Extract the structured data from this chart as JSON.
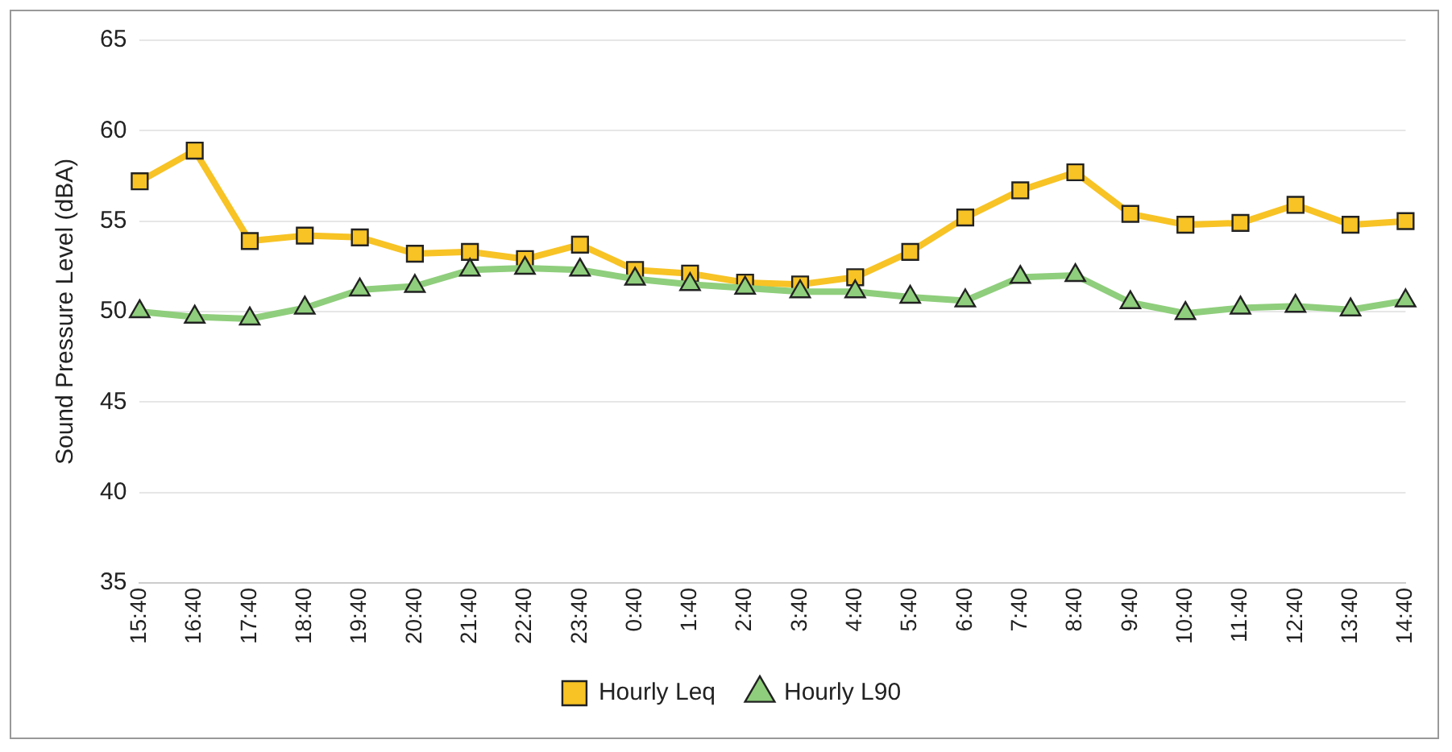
{
  "chart_data": {
    "type": "line",
    "ylabel": "Sound Pressure Level (dBA)",
    "categories": [
      "15:40",
      "16:40",
      "17:40",
      "18:40",
      "19:40",
      "20:40",
      "21:40",
      "22:40",
      "23:40",
      "0:40",
      "1:40",
      "2:40",
      "3:40",
      "4:40",
      "5:40",
      "6:40",
      "7:40",
      "8:40",
      "9:40",
      "10:40",
      "11:40",
      "12:40",
      "13:40",
      "14:40"
    ],
    "series": [
      {
        "name": "Hourly Leq",
        "color": "#f7c325",
        "marker": "square",
        "values": [
          57.2,
          58.9,
          53.9,
          54.2,
          54.1,
          53.2,
          53.3,
          52.9,
          53.7,
          52.3,
          52.1,
          51.6,
          51.5,
          51.9,
          53.3,
          55.2,
          56.7,
          57.7,
          55.4,
          54.8,
          54.9,
          55.9,
          54.8,
          55.0
        ]
      },
      {
        "name": "Hourly L90",
        "color": "#8fce7c",
        "marker": "triangle",
        "values": [
          50.0,
          49.7,
          49.6,
          50.2,
          51.2,
          51.4,
          52.3,
          52.4,
          52.3,
          51.8,
          51.5,
          51.3,
          51.1,
          51.1,
          50.8,
          50.6,
          51.9,
          52.0,
          50.5,
          49.9,
          50.2,
          50.3,
          50.1,
          50.6
        ]
      }
    ],
    "ylim": [
      35,
      65
    ],
    "yticks": [
      35,
      40,
      45,
      50,
      55,
      60,
      65
    ],
    "grid": "y",
    "legend": "bottom"
  }
}
